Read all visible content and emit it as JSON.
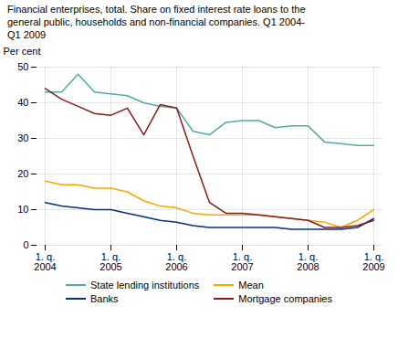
{
  "chart_data": {
    "type": "line",
    "title": "Financial enterprises, total. Share on fixed interest rate loans to the\ngeneral public, households and non-financial companies. Q1 2004-\nQ1 2009",
    "ylabel": "Per cent",
    "categories": [
      "1. q.\n2004",
      null,
      null,
      null,
      "1. q.\n2005",
      null,
      null,
      null,
      "1. q.\n2006",
      null,
      null,
      null,
      "1. q.\n2007",
      null,
      null,
      null,
      "1. q.\n2008",
      null,
      null,
      null,
      "1. q.\n2009"
    ],
    "series": [
      {
        "name": "State lending institutions",
        "color": "#4DADA7",
        "values": [
          43,
          43,
          48,
          43,
          42.5,
          42,
          40,
          39,
          38.5,
          32,
          31,
          34.5,
          35,
          35,
          33,
          33.5,
          33.5,
          29,
          28.5,
          28,
          28
        ]
      },
      {
        "name": "Mean",
        "color": "#FFA500",
        "values": [
          18,
          17,
          17,
          16,
          16,
          15,
          12.5,
          11,
          10.5,
          9,
          8.5,
          8.5,
          8.5,
          8.5,
          8,
          7.5,
          7,
          6.5,
          5,
          7,
          10
        ]
      },
      {
        "name": "Banks",
        "color": "#003087",
        "values": [
          12,
          11,
          10.5,
          10,
          10,
          9,
          8,
          7,
          6.5,
          5.5,
          5,
          5,
          5,
          5,
          5,
          4.5,
          4.5,
          4.5,
          4.5,
          5,
          7.5
        ]
      },
      {
        "name": "Mortgage companies",
        "color": "#8B1A1A",
        "values": [
          44,
          41,
          39,
          37,
          36.5,
          38.5,
          31,
          39.5,
          38.5,
          25,
          12,
          9,
          9,
          8.5,
          8,
          7.5,
          7,
          5,
          5,
          5.5,
          7
        ]
      }
    ],
    "ylim": [
      0,
      50
    ],
    "yticks": [
      0,
      10,
      20,
      30,
      40,
      50
    ],
    "grid": true,
    "legend": "bottom"
  }
}
